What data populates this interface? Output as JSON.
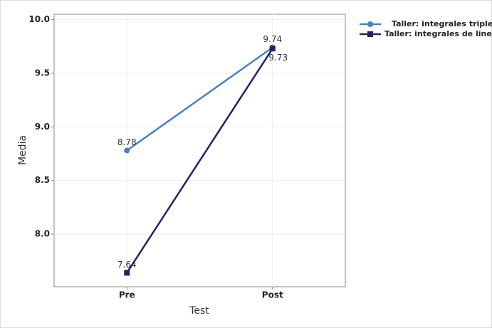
{
  "chart_data": {
    "type": "line",
    "x_label": "Test",
    "y_label": "Media",
    "categories": [
      "Pre",
      "Post"
    ],
    "series": [
      {
        "name": "Taller: integrales triples",
        "color": "#4a7fc1",
        "marker": "circle",
        "values": [
          8.78,
          9.74
        ],
        "label_side": [
          "above",
          "above"
        ]
      },
      {
        "name": "Taller: integrales de linea",
        "color": "#26215e",
        "marker": "square",
        "values": [
          7.64,
          9.73
        ],
        "label_side": [
          "above",
          "below"
        ]
      }
    ],
    "ylim": [
      7.51,
      10.05
    ],
    "yticks": [
      {
        "value": 8,
        "label": "8.0"
      },
      {
        "value": 8.5,
        "label": "8.5"
      },
      {
        "value": 9,
        "label": "9.0"
      },
      {
        "value": 9.5,
        "label": "9.5"
      },
      {
        "value": 10,
        "label": "10.0"
      }
    ],
    "grid": true
  }
}
